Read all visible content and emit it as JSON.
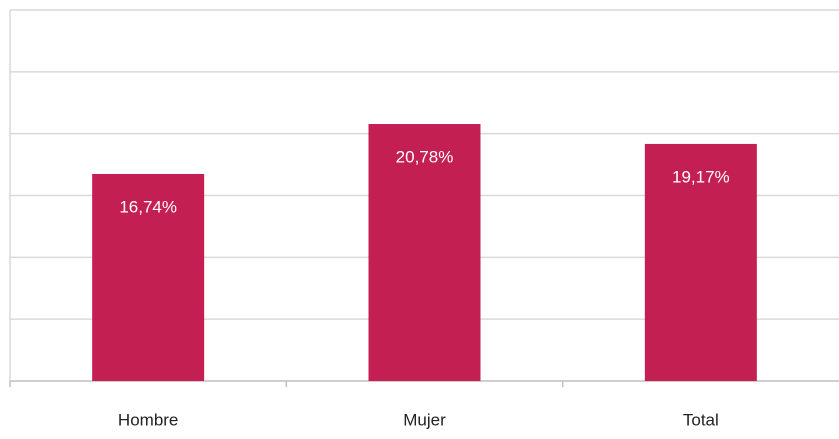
{
  "chart_data": {
    "type": "bar",
    "categories": [
      "Hombre",
      "Mujer",
      "Total"
    ],
    "values": [
      16.74,
      20.78,
      19.17
    ],
    "value_labels": [
      "16,74%",
      "20,78%",
      "19,17%"
    ],
    "color": "#c41f52",
    "ylim": [
      0,
      30
    ],
    "yticks": [
      0,
      5,
      10,
      15,
      20,
      25,
      30
    ],
    "grid": true
  }
}
